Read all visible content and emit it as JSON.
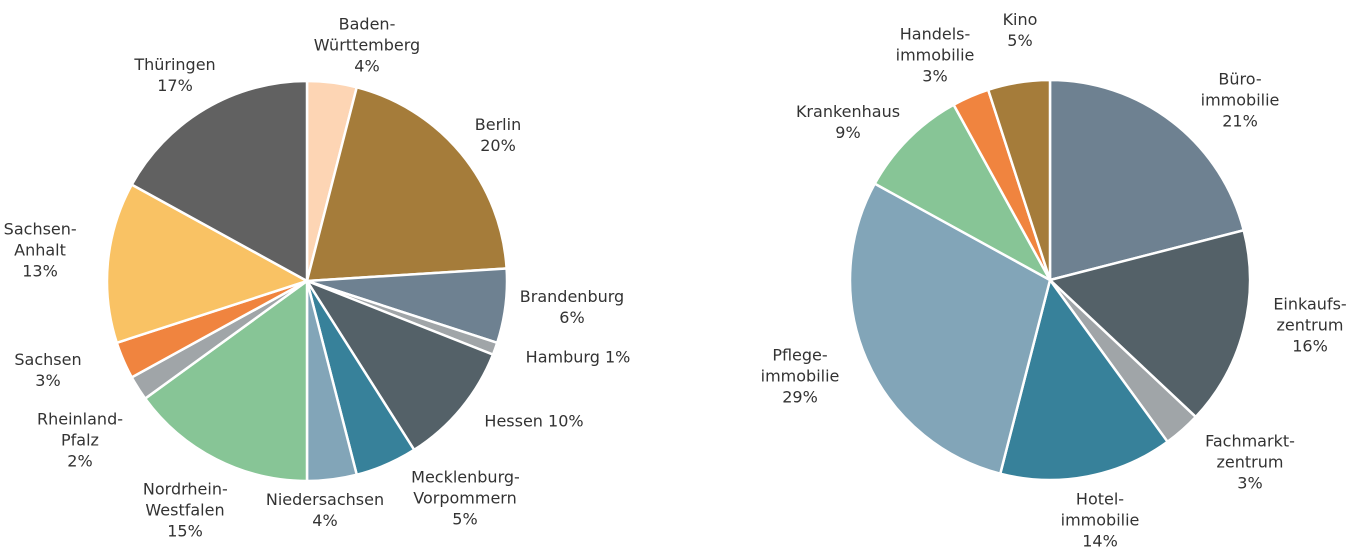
{
  "chart_data": [
    {
      "type": "pie",
      "categories": [
        "Baden-Württemberg",
        "Berlin",
        "Brandenburg",
        "Hamburg",
        "Hessen",
        "Mecklenburg-Vorpommern",
        "Niedersachsen",
        "Nordrhein-Westfalen",
        "Rheinland-Pfalz",
        "Sachsen",
        "Sachsen-Anhalt",
        "Thüringen"
      ],
      "values": [
        4,
        20,
        6,
        1,
        10,
        5,
        4,
        15,
        2,
        3,
        13,
        17
      ],
      "value_labels": [
        "4%",
        "20%",
        "6%",
        "1%",
        "10%",
        "5%",
        "4%",
        "15%",
        "2%",
        "3%",
        "13%",
        "17%"
      ],
      "colors": [
        "#fdd5b4",
        "#a57c3a",
        "#6e8191",
        "#a0a5a8",
        "#546168",
        "#37819a",
        "#82a5b8",
        "#87c596",
        "#a0a5a8",
        "#f0843f",
        "#f9c264",
        "#616161"
      ]
    },
    {
      "type": "pie",
      "categories": [
        "Büro-immobilie",
        "Einkaufs-zentrum",
        "Fachmarkt-zentrum",
        "Hotel-immobilie",
        "Pflege-immobilie",
        "Krankenhaus",
        "Handels-immobilie",
        "Kino"
      ],
      "values": [
        21,
        16,
        3,
        14,
        29,
        9,
        3,
        5
      ],
      "value_labels": [
        "21%",
        "16%",
        "3%",
        "14%",
        "29%",
        "9%",
        "3%",
        "5%"
      ],
      "colors": [
        "#6e8191",
        "#546168",
        "#a0a5a8",
        "#37819a",
        "#82a5b8",
        "#87c596",
        "#f0843f",
        "#a57c3a"
      ]
    }
  ]
}
